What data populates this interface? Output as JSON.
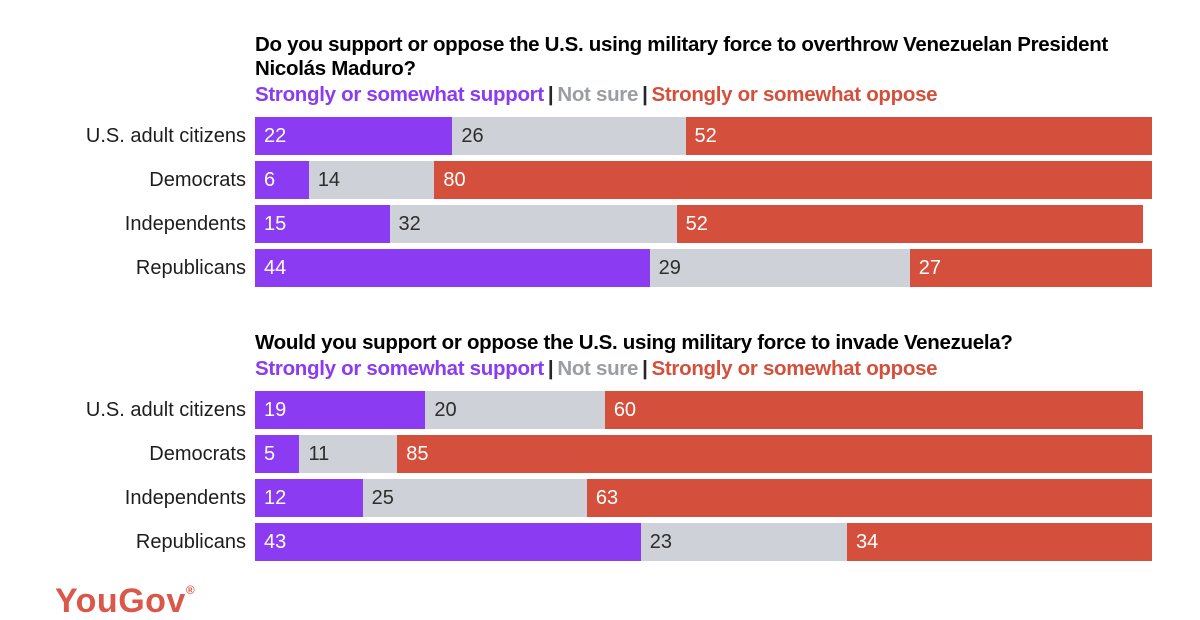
{
  "colors": {
    "support": "#8B3BF1",
    "not_sure": "#CFD1D8",
    "oppose": "#D5503C",
    "legend_not_sure_text": "#9A9DA2",
    "separator_text": "#26262a",
    "title_text": "#000000",
    "label_text": "#1d1d1f",
    "value_dark": "#2d2d2d",
    "logo": "#D9584A"
  },
  "legend": {
    "support": "Strongly or somewhat support",
    "not_sure": "Not sure",
    "oppose": "Strongly or somewhat oppose",
    "separator": "|"
  },
  "charts": [
    {
      "title": "Do you support or oppose the U.S. using military force to overthrow Venezuelan President Nicolás Maduro?",
      "rows": [
        {
          "label": "U.S. adult citizens",
          "support": 22,
          "not_sure": 26,
          "oppose": 52
        },
        {
          "label": "Democrats",
          "support": 6,
          "not_sure": 14,
          "oppose": 80
        },
        {
          "label": "Independents",
          "support": 15,
          "not_sure": 32,
          "oppose": 52
        },
        {
          "label": "Republicans",
          "support": 44,
          "not_sure": 29,
          "oppose": 27
        }
      ]
    },
    {
      "title": "Would you support or oppose the U.S. using military force to invade Venezuela?",
      "rows": [
        {
          "label": "U.S. adult citizens",
          "support": 19,
          "not_sure": 20,
          "oppose": 60
        },
        {
          "label": "Democrats",
          "support": 5,
          "not_sure": 11,
          "oppose": 85
        },
        {
          "label": "Independents",
          "support": 12,
          "not_sure": 25,
          "oppose": 63
        },
        {
          "label": "Republicans",
          "support": 43,
          "not_sure": 23,
          "oppose": 34
        }
      ]
    }
  ],
  "logo": {
    "text": "YouGov",
    "mark": "®"
  },
  "chart_data": [
    {
      "type": "bar",
      "orientation": "horizontal_stacked",
      "title": "Do you support or oppose the U.S. using military force to overthrow Venezuelan President Nicolás Maduro?",
      "categories": [
        "U.S. adult citizens",
        "Democrats",
        "Independents",
        "Republicans"
      ],
      "series": [
        {
          "name": "Strongly or somewhat support",
          "color": "#8B3BF1",
          "values": [
            22,
            6,
            15,
            44
          ]
        },
        {
          "name": "Not sure",
          "color": "#CFD1D8",
          "values": [
            26,
            14,
            32,
            29
          ]
        },
        {
          "name": "Strongly or somewhat oppose",
          "color": "#D5503C",
          "values": [
            52,
            80,
            52,
            27
          ]
        }
      ],
      "xlim": [
        0,
        100
      ],
      "unit": "percent",
      "data_labels": true,
      "legend_position": "top",
      "grid": false
    },
    {
      "type": "bar",
      "orientation": "horizontal_stacked",
      "title": "Would you support or oppose the U.S. using military force to invade Venezuela?",
      "categories": [
        "U.S. adult citizens",
        "Democrats",
        "Independents",
        "Republicans"
      ],
      "series": [
        {
          "name": "Strongly or somewhat support",
          "color": "#8B3BF1",
          "values": [
            19,
            5,
            12,
            43
          ]
        },
        {
          "name": "Not sure",
          "color": "#CFD1D8",
          "values": [
            20,
            11,
            25,
            23
          ]
        },
        {
          "name": "Strongly or somewhat oppose",
          "color": "#D5503C",
          "values": [
            60,
            85,
            63,
            34
          ]
        }
      ],
      "xlim": [
        0,
        100
      ],
      "unit": "percent",
      "data_labels": true,
      "legend_position": "top",
      "grid": false
    }
  ]
}
